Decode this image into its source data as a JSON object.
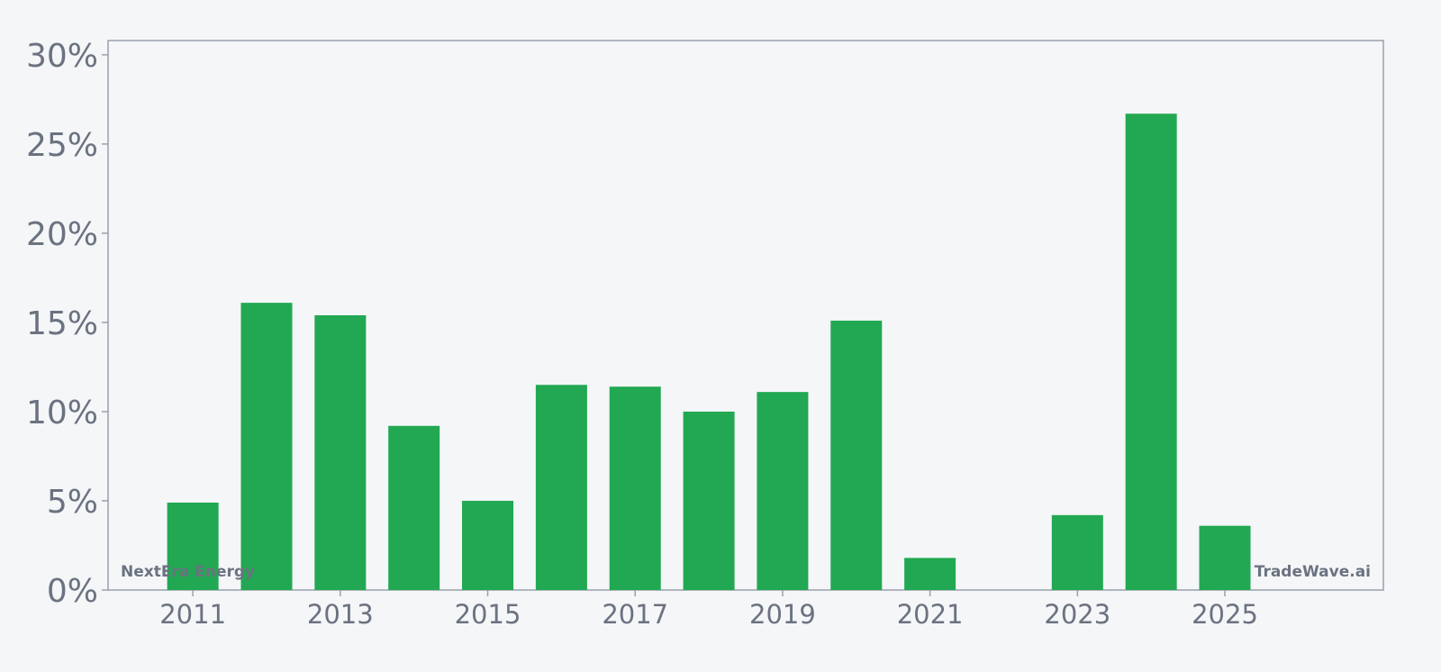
{
  "colors": {
    "background": "#f4f6f8",
    "bar": "#22a852",
    "axis": "#9aa0ac",
    "text": "#6b7280"
  },
  "watermarks": {
    "left": "NextEra Energy",
    "right": "TradeWave.ai"
  },
  "chart_data": {
    "type": "bar",
    "title": "",
    "xlabel": "",
    "ylabel": "",
    "x": [
      2011,
      2012,
      2013,
      2014,
      2015,
      2016,
      2017,
      2018,
      2019,
      2020,
      2021,
      2022,
      2023,
      2024,
      2025
    ],
    "values": [
      4.9,
      16.1,
      15.4,
      9.2,
      5.0,
      11.5,
      11.4,
      10.0,
      11.1,
      15.1,
      1.8,
      0,
      4.2,
      26.7,
      3.6
    ],
    "xlim": [
      2009.85,
      2027.15
    ],
    "ylim": [
      0,
      30.8
    ],
    "y_ticks": [
      0,
      5,
      10,
      15,
      20,
      25,
      30
    ],
    "y_tick_labels": [
      "0%",
      "5%",
      "10%",
      "15%",
      "20%",
      "25%",
      "30%"
    ],
    "x_ticks": [
      2011,
      2013,
      2015,
      2017,
      2019,
      2021,
      2023,
      2025
    ],
    "x_tick_labels": [
      "2011",
      "2013",
      "2015",
      "2017",
      "2019",
      "2021",
      "2023",
      "2025"
    ],
    "grid": false,
    "legend": "none"
  }
}
